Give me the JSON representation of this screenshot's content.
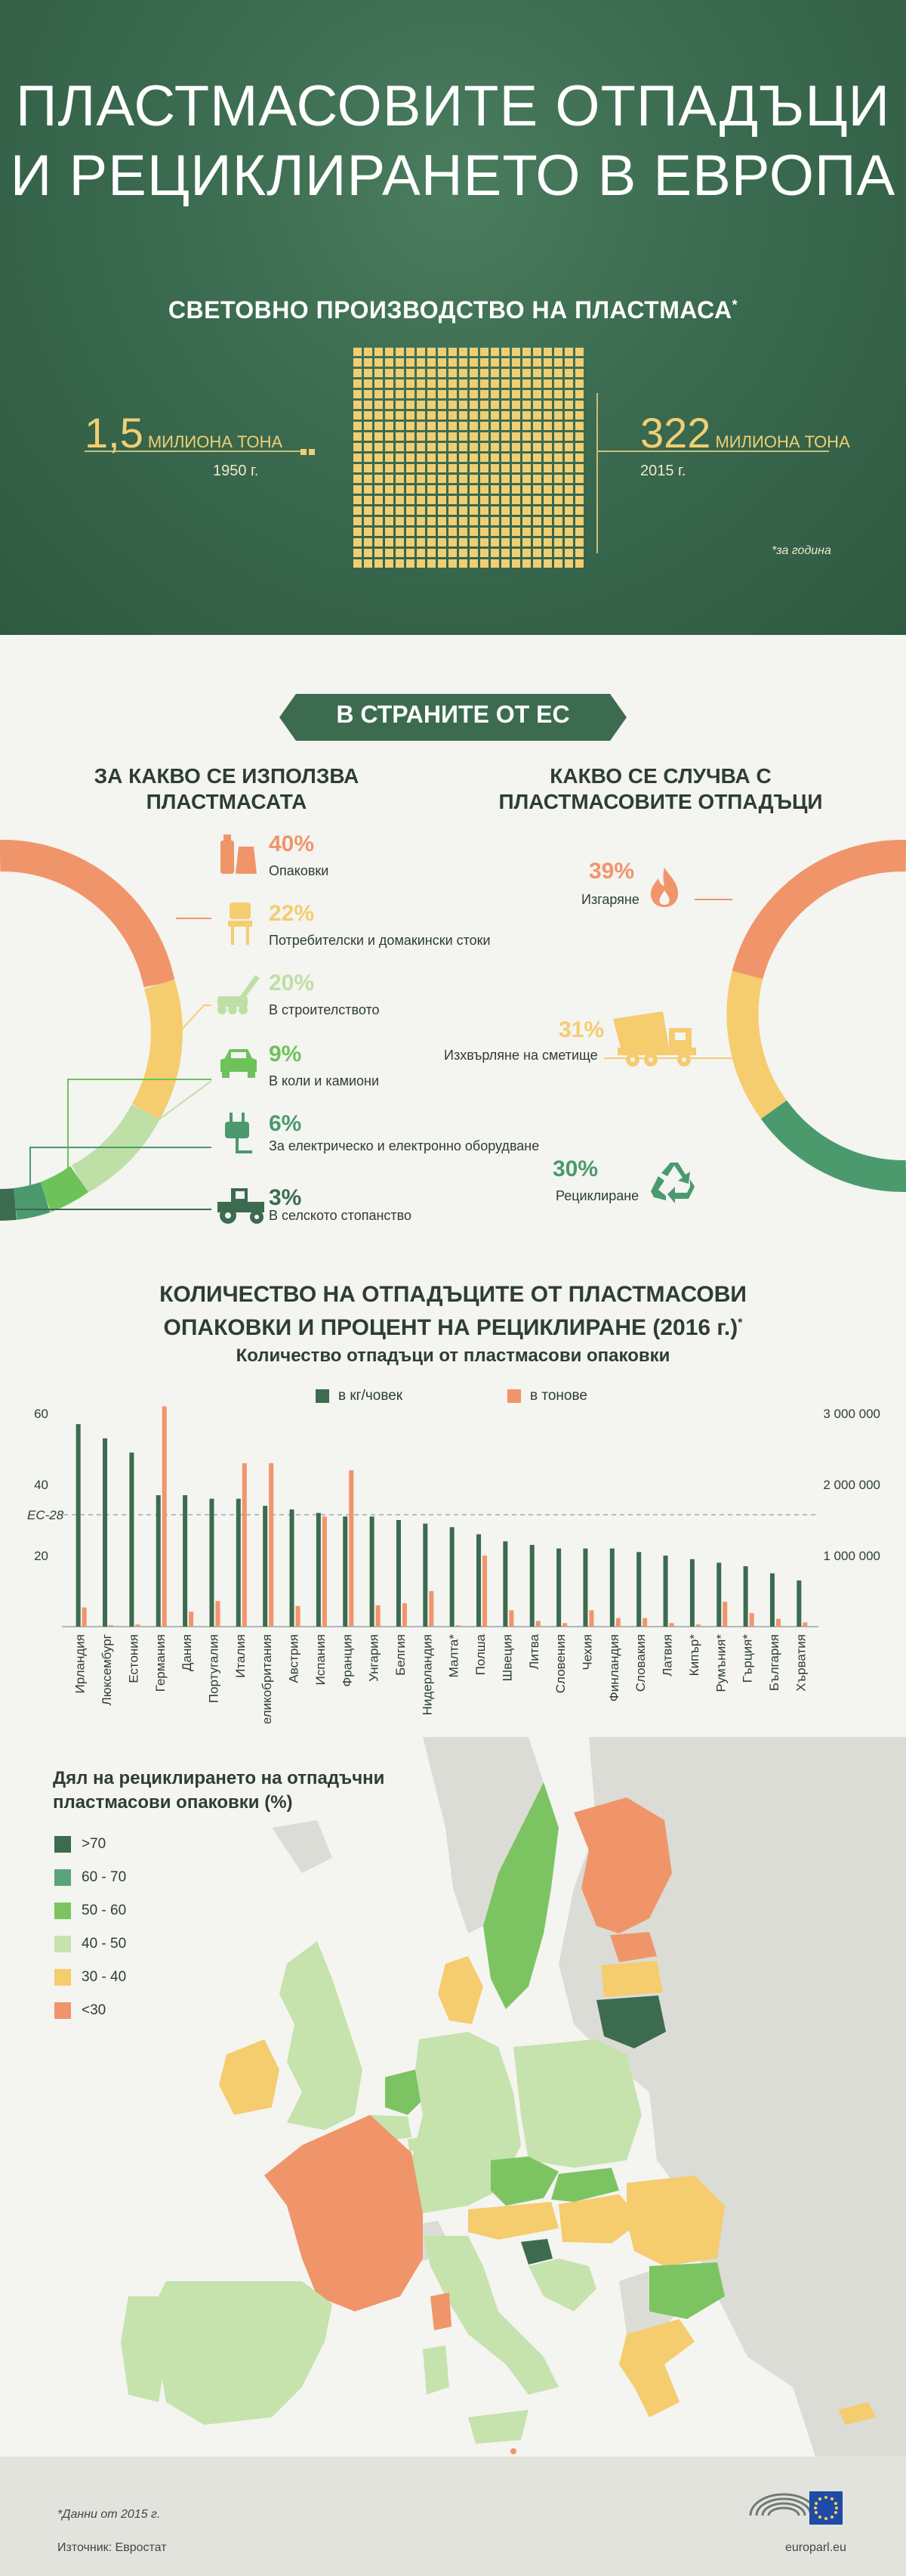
{
  "header": {
    "title_line1": "ПЛАСТМАСОВИТЕ ОТПАДЪЦИ",
    "title_line2": "И РЕЦИКЛИРАНЕТО В ЕВРОПА",
    "production_title": "СВЕТОВНО ПРОИЗВОДСТВО НА ПЛАСТМАСА",
    "production_title_mark": "*",
    "left_value": "1,5",
    "left_unit": "МИЛИОНА ТОНА",
    "left_year": "1950 г.",
    "right_value": "322",
    "right_unit": "МИЛИОНА ТОНА",
    "right_year": "2015 г.",
    "note": "*за година"
  },
  "eu_section": {
    "banner": "В СТРАНИТЕ ОТ ЕС",
    "use_title_line1": "ЗА КАКВО СЕ ИЗПОЛЗВА",
    "use_title_line2": "ПЛАСТМАСАТА",
    "uses": [
      {
        "pct": "40%",
        "label": "Опаковки",
        "color": "#f0956a",
        "icon": "bottle-icon"
      },
      {
        "pct": "22%",
        "label": "Потребителски и домакински стоки",
        "color": "#f5cc6e",
        "icon": "chair-icon"
      },
      {
        "pct": "20%",
        "label": "В строителството",
        "color": "#bedfa5",
        "icon": "crane-icon"
      },
      {
        "pct": "9%",
        "label": "В коли и камиони",
        "color": "#6ec25a",
        "icon": "car-icon"
      },
      {
        "pct": "6%",
        "label": "За електрическо и електронно оборудване",
        "color": "#4a9a6e",
        "icon": "plug-icon"
      },
      {
        "pct": "3%",
        "label": "В селското стопанство",
        "color": "#3c6b50",
        "icon": "tractor-icon"
      }
    ],
    "waste_title_line1": "КАКВО СЕ СЛУЧВА С",
    "waste_title_line2": "ПЛАСТМАСОВИТЕ ОТПАДЪЦИ",
    "waste": [
      {
        "pct": "39%",
        "label": "Изгаряне",
        "color": "#f0956a",
        "icon": "fire-icon"
      },
      {
        "pct": "31%",
        "label": "Изхвърляне на сметище",
        "color": "#f5cc6e",
        "icon": "dump-truck-icon"
      },
      {
        "pct": "30%",
        "label": "Рециклиране",
        "color": "#4a9a6e",
        "icon": "recycle-icon"
      }
    ]
  },
  "chart_data": {
    "type": "bar",
    "title_line1": "КОЛИЧЕСТВО НА ОТПАДЪЦИТЕ ОТ ПЛАСТМАСОВИ",
    "title_line2": "ОПАКОВКИ И ПРОЦЕНТ НА РЕЦИКЛИРАНЕ (2016 г.)",
    "title_mark": "*",
    "subtitle": "Количество отпадъци от пластмасови опаковки",
    "legend_position": "top-center",
    "grid": false,
    "left_axis": {
      "ticks": [
        "20",
        "40",
        "60"
      ],
      "range": [
        0,
        60
      ]
    },
    "right_axis": {
      "ticks": [
        "1 000 000",
        "2 000 000",
        "3 000 000"
      ],
      "range": [
        0,
        3000000
      ]
    },
    "reference": {
      "label": "ЕС-28",
      "value": 31.5
    },
    "categories": [
      "Ирландия",
      "Люксембург",
      "Естония",
      "Германия",
      "Дания",
      "Португалия",
      "Италия",
      "Великобритания",
      "Австрия",
      "Испания",
      "Франция",
      "Унгария",
      "Белгия",
      "Нидерландия",
      "Малта*",
      "Полша",
      "Швеция",
      "Литва",
      "Словения",
      "Чехия",
      "Финландия",
      "Словакия",
      "Латвия",
      "Кипър*",
      "Румъния*",
      "Гърция*",
      "България",
      "Хърватия"
    ],
    "series": [
      {
        "name": "в кг/човек",
        "color": "#3c6b50",
        "axis": "left",
        "values": [
          57,
          53,
          49,
          37,
          37,
          36,
          36,
          34,
          33,
          32,
          31,
          31,
          30,
          29,
          28,
          26,
          24,
          23,
          22,
          22,
          22,
          21,
          20,
          19,
          18,
          17,
          15,
          13
        ]
      },
      {
        "name": "в тонове",
        "color": "#f0956a",
        "axis": "right",
        "values": [
          270000,
          20000,
          30000,
          3100000,
          210000,
          360000,
          2300000,
          2300000,
          290000,
          1550000,
          2200000,
          300000,
          330000,
          500000,
          20000,
          1000000,
          230000,
          80000,
          50000,
          230000,
          120000,
          120000,
          50000,
          30000,
          350000,
          190000,
          110000,
          60000
        ]
      }
    ]
  },
  "map": {
    "title_line1": "Дял на рециклирането на отпадъчни",
    "title_line2": "пластмасови опаковки (%)",
    "legend": [
      {
        "label": ">70",
        "color": "#3c6b50"
      },
      {
        "label": "60 - 70",
        "color": "#5aa47c"
      },
      {
        "label": "50 - 60",
        "color": "#7cc462"
      },
      {
        "label": "40 - 50",
        "color": "#c6e2ad"
      },
      {
        "label": "30 - 40",
        "color": "#f5cc6e"
      },
      {
        "label": "<30",
        "color": "#f0956a"
      }
    ]
  },
  "footer": {
    "note": "*Данни от 2015 г.",
    "source": "Източник: Евростат",
    "site": "europarl.eu"
  }
}
